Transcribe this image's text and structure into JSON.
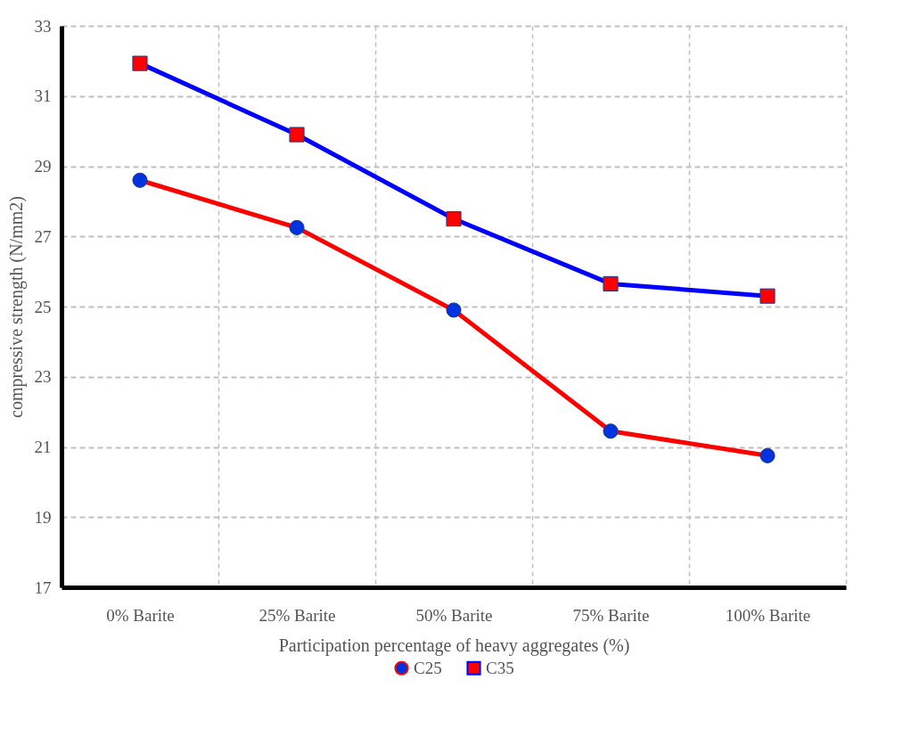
{
  "chart_data": {
    "type": "line",
    "xlabel": "Participation percentage of heavy aggregates (%)",
    "ylabel": "compressive strength (N/mm2)",
    "categories": [
      "0% Barite",
      "25% Barite",
      "50% Barite",
      "75% Barite",
      "100% Barite"
    ],
    "series": [
      {
        "name": "C25",
        "color": "#ff0000",
        "marker": "circle",
        "colors": [
          "#0033dd",
          "#0033dd",
          "#0033dd",
          "#0033dd",
          "#0033dd"
        ],
        "values": [
          28.6,
          27.25,
          24.9,
          21.45,
          20.75
        ]
      },
      {
        "name": "C35",
        "color": "#0000ff",
        "marker": "square",
        "colors": [
          "#ff0000",
          "#ff0000",
          "#ff0000",
          "#ff0000",
          "#ff0000"
        ],
        "values": [
          31.93,
          29.9,
          27.5,
          25.65,
          25.3
        ]
      }
    ],
    "ylim": [
      17,
      33
    ],
    "yticks": [
      17,
      19,
      21,
      23,
      25,
      27,
      29,
      31,
      33
    ],
    "grid": true,
    "legend": "bottom",
    "line_style": "solid"
  }
}
